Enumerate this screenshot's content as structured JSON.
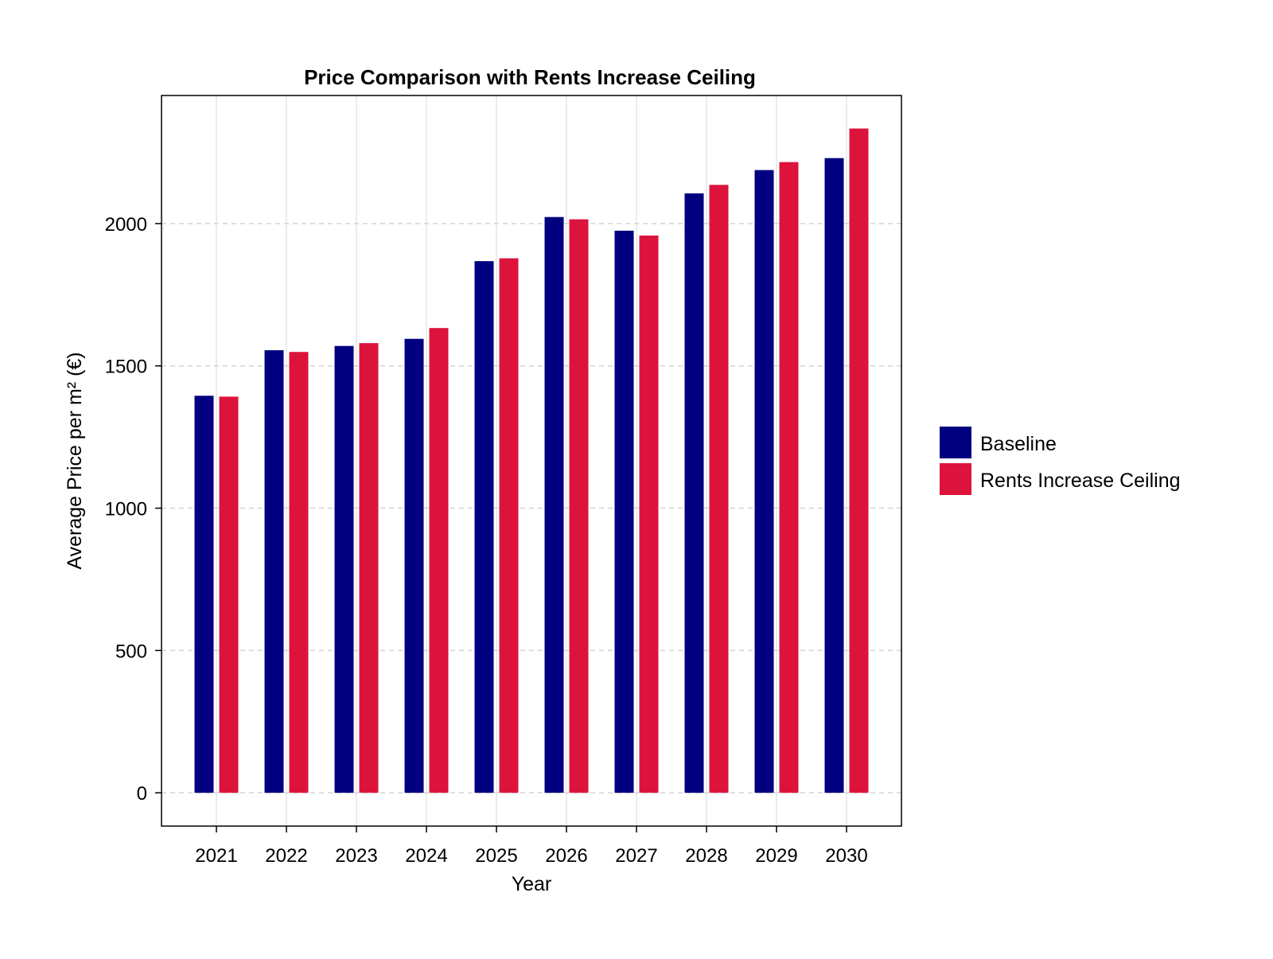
{
  "chart_data": {
    "type": "bar",
    "title": "Price Comparison with Rents Increase Ceiling",
    "xlabel": "Year",
    "ylabel": "Average Price per m² (€)",
    "categories": [
      "2021",
      "2022",
      "2023",
      "2024",
      "2025",
      "2026",
      "2027",
      "2028",
      "2029",
      "2030"
    ],
    "series": [
      {
        "name": "Baseline",
        "color": "#000080",
        "values": [
          1395,
          1555,
          1570,
          1595,
          1868,
          2023,
          1975,
          2106,
          2188,
          2230
        ]
      },
      {
        "name": "Rents Increase Ceiling",
        "color": "#DC143C",
        "values": [
          1392,
          1549,
          1580,
          1633,
          1878,
          2015,
          1958,
          2136,
          2216,
          2334
        ]
      }
    ],
    "yticks": [
      0,
      500,
      1000,
      1500,
      2000
    ],
    "ytick_labels": [
      "0",
      "500",
      "1000",
      "1500",
      "2000"
    ],
    "ylim": [
      -117,
      2450
    ],
    "grid": {
      "x": true,
      "y": true,
      "y_style": "dashed"
    },
    "legend_position": "right"
  }
}
